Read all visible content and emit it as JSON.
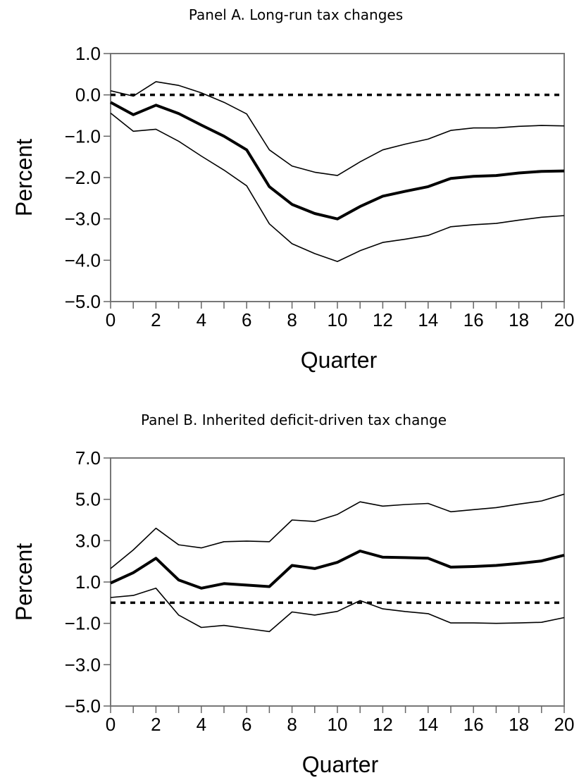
{
  "chart_data": [
    {
      "type": "line",
      "title": "Panel A. Long-run tax changes",
      "xlabel": "Quarter",
      "ylabel": "Percent",
      "xlim": [
        0,
        20
      ],
      "ylim": [
        -5.0,
        1.0
      ],
      "x_ticks": [
        0,
        2,
        4,
        6,
        8,
        10,
        12,
        14,
        16,
        18,
        20
      ],
      "x_tick_labels": [
        "0",
        "2",
        "4",
        "6",
        "8",
        "10",
        "12",
        "14",
        "16",
        "18",
        "20"
      ],
      "y_ticks": [
        1.0,
        0.0,
        -1.0,
        -2.0,
        -3.0,
        -4.0,
        -5.0
      ],
      "y_tick_labels": [
        "1.0",
        "0.0",
        "−1.0",
        "−2.0",
        "−3.0",
        "−4.0",
        "−5.0"
      ],
      "reference_line": 0.0,
      "x": [
        0,
        1,
        2,
        3,
        4,
        5,
        6,
        7,
        8,
        9,
        10,
        11,
        12,
        13,
        14,
        15,
        16,
        17,
        18,
        19,
        20
      ],
      "series": [
        {
          "role": "estimate",
          "values": [
            -0.18,
            -0.48,
            -0.25,
            -0.45,
            -0.73,
            -1.0,
            -1.33,
            -2.22,
            -2.65,
            -2.87,
            -3.0,
            -2.7,
            -2.45,
            -2.33,
            -2.22,
            -2.02,
            -1.97,
            -1.95,
            -1.89,
            -1.85,
            -1.84
          ]
        },
        {
          "role": "upper",
          "values": [
            0.1,
            -0.03,
            0.32,
            0.23,
            0.05,
            -0.18,
            -0.46,
            -1.33,
            -1.72,
            -1.87,
            -1.95,
            -1.62,
            -1.33,
            -1.19,
            -1.07,
            -0.86,
            -0.8,
            -0.8,
            -0.76,
            -0.74,
            -0.75
          ]
        },
        {
          "role": "lower",
          "values": [
            -0.44,
            -0.88,
            -0.83,
            -1.12,
            -1.48,
            -1.82,
            -2.2,
            -3.12,
            -3.6,
            -3.84,
            -4.03,
            -3.77,
            -3.57,
            -3.49,
            -3.4,
            -3.19,
            -3.14,
            -3.11,
            -3.03,
            -2.96,
            -2.92
          ]
        }
      ]
    },
    {
      "type": "line",
      "title": "Panel B. Inherited deficit-driven tax change",
      "xlabel": "Quarter",
      "ylabel": "Percent",
      "xlim": [
        0,
        20
      ],
      "ylim": [
        -5.0,
        7.0
      ],
      "x_ticks": [
        0,
        2,
        4,
        6,
        8,
        10,
        12,
        14,
        16,
        18,
        20
      ],
      "x_tick_labels": [
        "0",
        "2",
        "4",
        "6",
        "8",
        "10",
        "12",
        "14",
        "16",
        "18",
        "20"
      ],
      "y_ticks": [
        7.0,
        5.0,
        3.0,
        1.0,
        -1.0,
        -3.0,
        -5.0
      ],
      "y_tick_labels": [
        "7.0",
        "5.0",
        "3.0",
        "1.0",
        "−1.0",
        "−3.0",
        "−5.0"
      ],
      "reference_line": 0.0,
      "x": [
        0,
        1,
        2,
        3,
        4,
        5,
        6,
        7,
        8,
        9,
        10,
        11,
        12,
        13,
        14,
        15,
        16,
        17,
        18,
        19,
        20
      ],
      "series": [
        {
          "role": "estimate",
          "values": [
            0.95,
            1.45,
            2.15,
            1.1,
            0.7,
            0.92,
            0.85,
            0.78,
            1.8,
            1.65,
            1.95,
            2.5,
            2.2,
            2.18,
            2.15,
            1.72,
            1.75,
            1.8,
            1.9,
            2.02,
            2.3
          ]
        },
        {
          "role": "upper",
          "values": [
            1.65,
            2.55,
            3.6,
            2.8,
            2.65,
            2.95,
            2.98,
            2.95,
            4.0,
            3.93,
            4.27,
            4.88,
            4.67,
            4.75,
            4.8,
            4.4,
            4.5,
            4.6,
            4.77,
            4.92,
            5.25
          ]
        },
        {
          "role": "lower",
          "values": [
            0.25,
            0.35,
            0.7,
            -0.6,
            -1.2,
            -1.1,
            -1.25,
            -1.4,
            -0.45,
            -0.6,
            -0.42,
            0.1,
            -0.3,
            -0.43,
            -0.53,
            -0.98,
            -0.98,
            -1.0,
            -0.98,
            -0.95,
            -0.72
          ]
        }
      ]
    }
  ]
}
